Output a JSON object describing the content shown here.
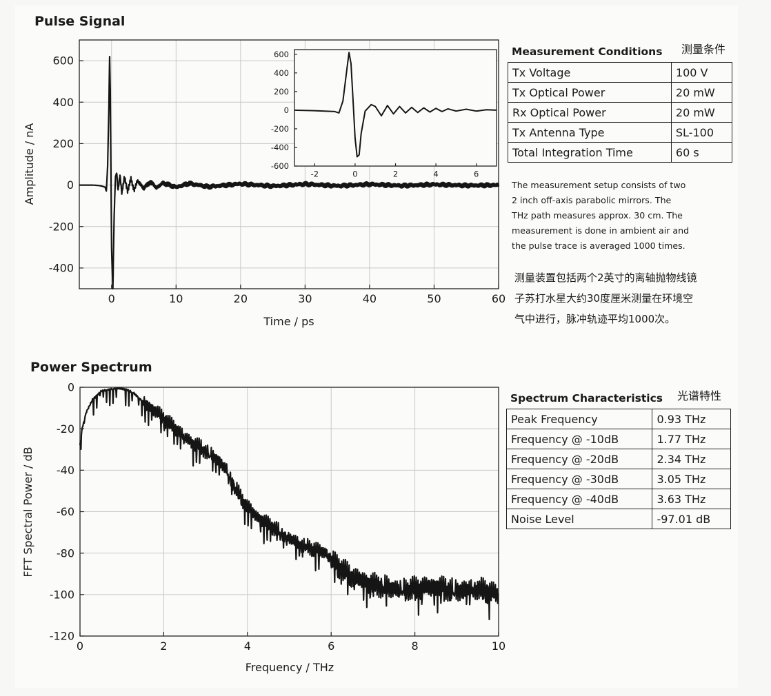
{
  "pulse": {
    "title": "Pulse Signal",
    "table_title": "Measurement Conditions",
    "table_title_cn": "测量条件",
    "conditions": [
      {
        "label": "Tx Voltage",
        "value": "100 V"
      },
      {
        "label": "Tx Optical Power",
        "value": "20 mW"
      },
      {
        "label": "Rx Optical Power",
        "value": "20 mW"
      },
      {
        "label": "Tx Antenna Type",
        "value": "SL-100"
      },
      {
        "label": "Total Integration Time",
        "value": "60 s"
      }
    ],
    "note_lines": [
      "The measurement setup consists of two",
      "2 inch off-axis parabolic mirrors. The",
      "THz path measures approx. 30 cm. The",
      "measurement is done in ambient air and",
      "the pulse trace is averaged 1000 times."
    ],
    "note_cn_lines": [
      "测量装置包括两个2英寸的离轴抛物线镜",
      "子苏打水星大约30度厘米测量在环境空",
      "气中进行，脉冲轨迹平均1000次。"
    ]
  },
  "spectrum": {
    "title": "Power Spectrum",
    "table_title": "Spectrum Characteristics",
    "table_title_cn": "光谱特性",
    "characteristics": [
      {
        "label": "Peak Frequency",
        "value": "0.93 THz"
      },
      {
        "label": "Frequency @ -10dB",
        "value": "1.77 THz"
      },
      {
        "label": "Frequency @ -20dB",
        "value": "2.34 THz"
      },
      {
        "label": "Frequency @ -30dB",
        "value": "3.05 THz"
      },
      {
        "label": "Frequency @ -40dB",
        "value": "3.63 THz"
      },
      {
        "label": "Noise Level",
        "value": "-97.01 dB"
      }
    ]
  },
  "chart_data": [
    {
      "type": "line",
      "xlabel": "Time / ps",
      "ylabel": "Amplitude / nA",
      "xlim": [
        -5,
        60
      ],
      "ylim": [
        -500,
        700
      ],
      "xticks": [
        0,
        10,
        20,
        30,
        40,
        50,
        60
      ],
      "yticks": [
        600,
        400,
        200,
        0,
        -200,
        -400
      ],
      "grid": true,
      "series": [
        {
          "x": [
            -5,
            -3,
            -2,
            -1.5,
            -1,
            -0.8,
            -0.6,
            -0.4,
            -0.3,
            -0.2,
            -0.1,
            0,
            0.2,
            0.4,
            0.6,
            0.8,
            1.0,
            1.3,
            1.6,
            2.0,
            2.5,
            3.0,
            3.5,
            4.0,
            5,
            6,
            7,
            8,
            10,
            12,
            15,
            20,
            25,
            30,
            35,
            40,
            45,
            50,
            55,
            60
          ],
          "y": [
            0,
            0,
            -2,
            -5,
            -10,
            -30,
            100,
            400,
            620,
            450,
            100,
            -300,
            -500,
            -150,
            40,
            60,
            -30,
            50,
            -40,
            40,
            -30,
            30,
            -25,
            20,
            -15,
            15,
            -12,
            10,
            -10,
            8,
            -8,
            6,
            -5,
            5,
            -4,
            4,
            -3,
            3,
            -2,
            0
          ]
        }
      ]
    },
    {
      "type": "line",
      "inset": true,
      "xlim": [
        -3,
        7
      ],
      "ylim": [
        -600,
        650
      ],
      "xticks": [
        -2,
        0,
        2,
        4,
        6
      ],
      "yticks": [
        600,
        400,
        200,
        0,
        -200,
        -400,
        -600
      ],
      "grid": false,
      "series": [
        {
          "x": [
            -3,
            -2,
            -1,
            -0.8,
            -0.6,
            -0.4,
            -0.3,
            -0.2,
            -0.1,
            0,
            0.1,
            0.2,
            0.3,
            0.5,
            0.8,
            1.0,
            1.3,
            1.6,
            1.9,
            2.2,
            2.5,
            2.8,
            3.1,
            3.4,
            3.7,
            4.0,
            4.3,
            4.6,
            5.0,
            5.5,
            6.0,
            6.5,
            7.0
          ],
          "y": [
            0,
            -5,
            -15,
            -30,
            100,
            450,
            620,
            500,
            100,
            -300,
            -500,
            -480,
            -250,
            -10,
            60,
            40,
            -60,
            50,
            -40,
            40,
            -30,
            30,
            -25,
            25,
            -20,
            20,
            -15,
            15,
            -10,
            10,
            -10,
            5,
            0
          ]
        }
      ]
    },
    {
      "type": "line",
      "xlabel": "Frequency / THz",
      "ylabel": "FFT Spectral Power / dB",
      "xlim": [
        0,
        10
      ],
      "ylim": [
        -120,
        0
      ],
      "xticks": [
        0,
        2,
        4,
        6,
        8,
        10
      ],
      "yticks": [
        0,
        -20,
        -40,
        -60,
        -80,
        -100,
        -120
      ],
      "grid": true,
      "series": [
        {
          "x": [
            0,
            0.05,
            0.15,
            0.3,
            0.5,
            0.7,
            0.9,
            1.1,
            1.3,
            1.5,
            1.7,
            1.9,
            2.1,
            2.3,
            2.5,
            2.7,
            2.9,
            3.1,
            3.3,
            3.5,
            3.7,
            3.9,
            4.2,
            4.5,
            4.8,
            5.0,
            5.3,
            5.6,
            5.9,
            6.1,
            6.4,
            6.7,
            7.0,
            7.5,
            8.0,
            8.5,
            9.0,
            9.5,
            10.0
          ],
          "y": [
            -28,
            -20,
            -12,
            -6,
            -2,
            -1,
            -0.5,
            -1,
            -3,
            -7,
            -10,
            -13,
            -17,
            -20,
            -24,
            -27,
            -29,
            -32,
            -35,
            -40,
            -48,
            -55,
            -62,
            -66,
            -70,
            -73,
            -76,
            -78,
            -80,
            -85,
            -90,
            -93,
            -95,
            -97,
            -97,
            -96,
            -98,
            -97,
            -100
          ]
        }
      ]
    }
  ]
}
